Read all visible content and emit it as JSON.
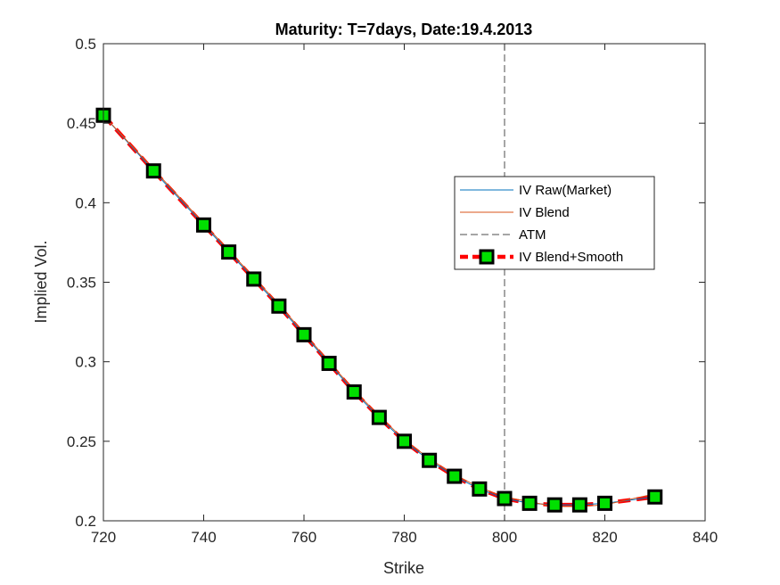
{
  "chart_data": {
    "type": "line",
    "title": "Maturity: T=7days, Date:19.4.2013",
    "xlabel": "Strike",
    "ylabel": "Implied Vol.",
    "xlim": [
      720,
      840
    ],
    "ylim": [
      0.2,
      0.5
    ],
    "x_ticks": [
      "720",
      "740",
      "760",
      "780",
      "800",
      "820",
      "840"
    ],
    "y_ticks": [
      "0.2",
      "0.25",
      "0.3",
      "0.35",
      "0.4",
      "0.45",
      "0.5"
    ],
    "grid": false,
    "legend_position": "right",
    "atm_strike": 800,
    "series": [
      {
        "name": "IV Raw(Market)",
        "style": "solid",
        "color": "#0072BD",
        "x": [
          720,
          730,
          740,
          745,
          750,
          755,
          760,
          765,
          770,
          775,
          780,
          785,
          790,
          795,
          800,
          805,
          810,
          815,
          820,
          830
        ],
        "y": [
          0.455,
          0.42,
          0.386,
          0.369,
          0.352,
          0.335,
          0.317,
          0.299,
          0.281,
          0.265,
          0.25,
          0.238,
          0.228,
          0.22,
          0.214,
          0.211,
          0.21,
          0.21,
          0.211,
          0.215
        ]
      },
      {
        "name": "IV Blend",
        "style": "solid",
        "color": "#D95319",
        "x": [
          720,
          730,
          740,
          745,
          750,
          755,
          760,
          765,
          770,
          775,
          780,
          785,
          790,
          795,
          800,
          805,
          810,
          815,
          820,
          830
        ],
        "y": [
          0.455,
          0.421,
          0.387,
          0.37,
          0.353,
          0.336,
          0.318,
          0.3,
          0.282,
          0.266,
          0.251,
          0.239,
          0.229,
          0.221,
          0.215,
          0.212,
          0.209,
          0.209,
          0.21,
          0.217
        ]
      },
      {
        "name": "ATM",
        "style": "dashed-vertical",
        "color": "#4d4d4d"
      },
      {
        "name": "IV Blend+Smooth",
        "style": "dashed-markers",
        "color": "#FF0000",
        "marker_fill": "#00E000",
        "marker_edge": "#000000",
        "x": [
          720,
          730,
          740,
          745,
          750,
          755,
          760,
          765,
          770,
          775,
          780,
          785,
          790,
          795,
          800,
          805,
          810,
          815,
          820,
          830
        ],
        "y": [
          0.455,
          0.42,
          0.386,
          0.369,
          0.352,
          0.335,
          0.317,
          0.299,
          0.281,
          0.265,
          0.25,
          0.238,
          0.228,
          0.22,
          0.214,
          0.211,
          0.21,
          0.21,
          0.211,
          0.215
        ]
      }
    ]
  }
}
